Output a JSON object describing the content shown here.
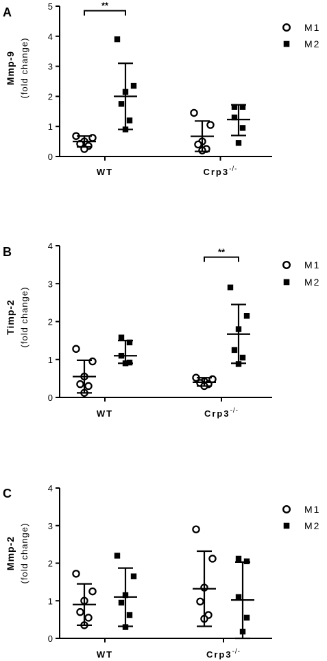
{
  "chart_data": [
    {
      "type": "scatter",
      "panel": "A",
      "ylabel": "Mmp-9",
      "ylabel_sub": "(fold change)",
      "ylim": [
        0,
        5
      ],
      "yticks": [
        "0",
        "1",
        "2",
        "3",
        "4",
        "5"
      ],
      "categories": [
        "WT",
        "Crp3"
      ],
      "category_superscript": [
        "",
        "-/-"
      ],
      "legend": [
        "M1",
        "M2"
      ],
      "series": [
        {
          "name": "M1",
          "marker": "open-circle",
          "groups": [
            {
              "points": [
                0.68,
                0.62,
                0.5,
                0.42,
                0.35,
                0.25
              ],
              "mean": 0.5,
              "sd_low": 0.32,
              "sd_high": 0.68
            },
            {
              "points": [
                1.45,
                1.05,
                0.5,
                0.4,
                0.25,
                0.2
              ],
              "mean": 0.67,
              "sd_low": 0.17,
              "sd_high": 1.18
            }
          ]
        },
        {
          "name": "M2",
          "marker": "filled-square",
          "groups": [
            {
              "points": [
                3.9,
                2.35,
                2.15,
                1.75,
                1.2,
                0.9
              ],
              "mean": 2.0,
              "sd_low": 0.9,
              "sd_high": 3.1
            },
            {
              "points": [
                1.65,
                1.65,
                1.3,
                0.95,
                0.45
              ],
              "mean": 1.23,
              "sd_low": 0.7,
              "sd_high": 1.72
            }
          ]
        }
      ],
      "significance": [
        {
          "label": "**",
          "category": 0,
          "height": 4.85
        }
      ]
    },
    {
      "type": "scatter",
      "panel": "B",
      "ylabel": "Timp-2",
      "ylabel_sub": "(fold change)",
      "ylim": [
        0,
        4
      ],
      "yticks": [
        "0",
        "1",
        "2",
        "3",
        "4"
      ],
      "categories": [
        "WT",
        "Crp3"
      ],
      "category_superscript": [
        "",
        "-/-"
      ],
      "legend": [
        "M1",
        "M2"
      ],
      "series": [
        {
          "name": "M1",
          "marker": "open-circle",
          "groups": [
            {
              "points": [
                1.28,
                0.95,
                0.55,
                0.35,
                0.3,
                0.12
              ],
              "mean": 0.55,
              "sd_low": 0.12,
              "sd_high": 0.98
            },
            {
              "points": [
                0.52,
                0.48,
                0.42,
                0.38,
                0.35,
                0.3
              ],
              "mean": 0.4,
              "sd_low": 0.3,
              "sd_high": 0.52
            }
          ]
        },
        {
          "name": "M2",
          "marker": "filled-square",
          "groups": [
            {
              "points": [
                1.58,
                1.45,
                1.1,
                0.92,
                0.9
              ],
              "mean": 1.1,
              "sd_low": 0.9,
              "sd_high": 1.5
            },
            {
              "points": [
                2.9,
                2.15,
                1.8,
                1.25,
                1.05,
                0.88
              ],
              "mean": 1.67,
              "sd_low": 0.9,
              "sd_high": 2.45
            }
          ]
        }
      ],
      "significance": [
        {
          "label": "**",
          "category": 1,
          "height": 3.7
        }
      ]
    },
    {
      "type": "scatter",
      "panel": "C",
      "ylabel": "Mmp-2",
      "ylabel_sub": "(fold change)",
      "ylim": [
        0,
        4
      ],
      "yticks": [
        "0",
        "1",
        "2",
        "3",
        "4"
      ],
      "categories": [
        "WT",
        "Crp3"
      ],
      "category_superscript": [
        "",
        "-/-"
      ],
      "legend": [
        "M1",
        "M2"
      ],
      "series": [
        {
          "name": "M1",
          "marker": "open-circle",
          "groups": [
            {
              "points": [
                1.72,
                1.25,
                1.0,
                0.7,
                0.55,
                0.35
              ],
              "mean": 0.9,
              "sd_low": 0.35,
              "sd_high": 1.45
            },
            {
              "points": [
                2.9,
                2.12,
                1.35,
                0.98,
                0.62,
                0.52
              ],
              "mean": 1.32,
              "sd_low": 0.32,
              "sd_high": 2.32
            }
          ]
        },
        {
          "name": "M2",
          "marker": "filled-square",
          "groups": [
            {
              "points": [
                2.2,
                1.65,
                1.15,
                0.95,
                0.62,
                0.3
              ],
              "mean": 1.1,
              "sd_low": 0.32,
              "sd_high": 1.87
            },
            {
              "points": [
                2.12,
                2.05,
                1.1,
                0.55,
                0.18
              ],
              "mean": 1.02,
              "sd_low": 0.0,
              "sd_high": 2.03
            }
          ]
        }
      ],
      "significance": []
    }
  ]
}
